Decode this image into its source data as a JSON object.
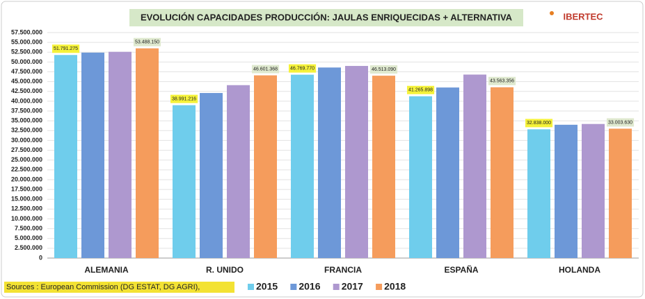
{
  "chart_data": {
    "type": "bar",
    "title": "EVOLUCIÓN CAPACIDADES PRODUCCIÓN: JAULAS ENRIQUECIDAS + ALTERNATIVA",
    "logo": "IBERTEC",
    "source": "Sources :  European Commission (DG ESTAT, DG AGRI),",
    "categories": [
      "ALEMANIA",
      "R. UNIDO",
      "FRANCIA",
      "ESPAÑA",
      "HOLANDA"
    ],
    "series": [
      {
        "name": "2015",
        "color": "#6fcdec",
        "values": [
          51791275,
          38991216,
          46769770,
          41265898,
          32838000
        ],
        "value_labels": [
          "51.791.275",
          "38.991.216",
          "46.769.770",
          "41.265.898",
          "32.838.000"
        ]
      },
      {
        "name": "2016",
        "color": "#6d98d8",
        "values": [
          52400000,
          42100000,
          48600000,
          43500000,
          34000000
        ]
      },
      {
        "name": "2017",
        "color": "#ae98cf",
        "values": [
          52600000,
          44100000,
          49000000,
          46800000,
          34200000
        ]
      },
      {
        "name": "2018",
        "color": "#f59c5c",
        "values": [
          53488150,
          46601368,
          46513090,
          43563356,
          33003630
        ],
        "value_labels": [
          "53.488.150",
          "46.601.368",
          "46.513.090",
          "43.563.356",
          "33.003.630"
        ]
      }
    ],
    "ylim": [
      0,
      57500000
    ],
    "yticks": [
      0,
      {
        "value": 2500000,
        "label": "2.500.000"
      },
      {
        "value": 5000000,
        "label": "5.000.000"
      },
      {
        "value": 7500000,
        "label": "7.500.000"
      },
      {
        "value": 10000000,
        "label": "10.000.000"
      },
      {
        "value": 12500000,
        "label": "12.500.000"
      },
      {
        "value": 15000000,
        "label": "15.000.000"
      },
      {
        "value": 17500000,
        "label": "17.500.000"
      },
      {
        "value": 20000000,
        "label": "20.000.000"
      },
      {
        "value": 22500000,
        "label": "22.500.000"
      },
      {
        "value": 25000000,
        "label": "25.000.000"
      },
      {
        "value": 27500000,
        "label": "27.500.000"
      },
      {
        "value": 30000000,
        "label": "30.000.000"
      },
      {
        "value": 32500000,
        "label": "32.500.000"
      },
      {
        "value": 35000000,
        "label": "35.000.000"
      },
      {
        "value": 37500000,
        "label": "37.500.000"
      },
      {
        "value": 40000000,
        "label": "40.000.000"
      },
      {
        "value": 42500000,
        "label": "42.500.000"
      },
      {
        "value": 45000000,
        "label": "45.000.000"
      },
      {
        "value": 47500000,
        "label": "47.500.000"
      },
      {
        "value": 50000000,
        "label": "50.000.000"
      },
      {
        "value": 52500000,
        "label": "52.500.000"
      },
      {
        "value": 55000000,
        "label": "55.000.000"
      },
      {
        "value": 57500000,
        "label": "57.500.000"
      }
    ],
    "grid": true,
    "legend": "bottom"
  }
}
